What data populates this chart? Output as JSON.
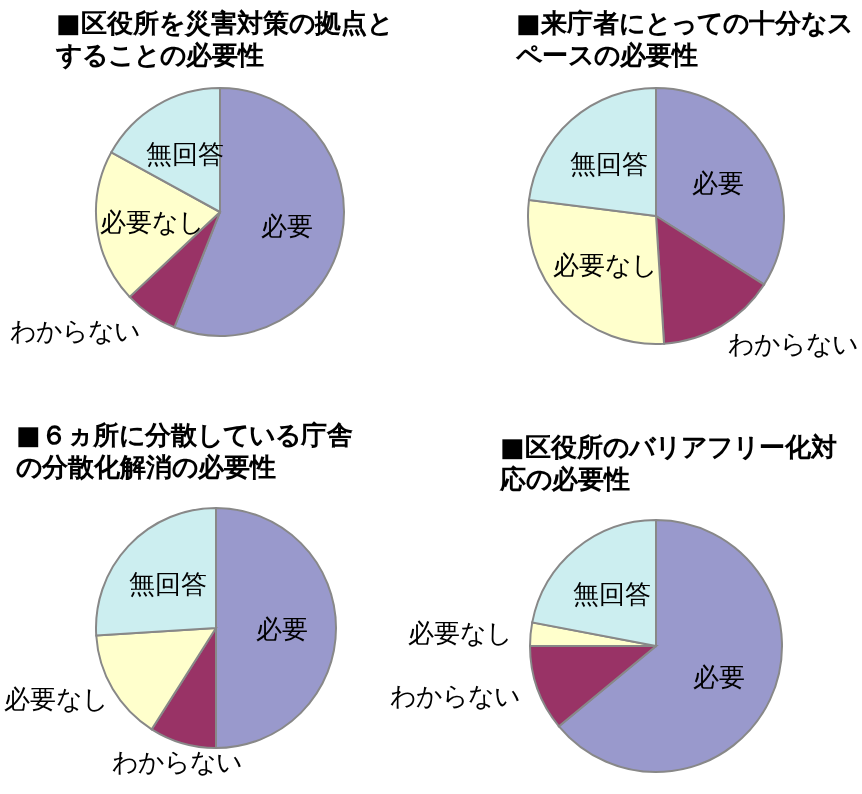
{
  "chart_data": [
    {
      "type": "pie",
      "title": "■区役所を災害対策の拠点とすることの必要性",
      "categories": [
        "必要",
        "わからない",
        "必要なし",
        "無回答"
      ],
      "values": [
        56,
        7,
        20,
        17
      ],
      "colors": [
        "#9999cc",
        "#993366",
        "#ffffcc",
        "#cceef0"
      ]
    },
    {
      "type": "pie",
      "title": "■来庁者にとっての十分なスペースの必要性",
      "categories": [
        "必要",
        "わからない",
        "必要なし",
        "無回答"
      ],
      "values": [
        34,
        15,
        28,
        23
      ],
      "colors": [
        "#9999cc",
        "#993366",
        "#ffffcc",
        "#cceef0"
      ]
    },
    {
      "type": "pie",
      "title": "■６ヵ所に分散している庁舎の分散化解消の必要性",
      "categories": [
        "必要",
        "わからない",
        "必要なし",
        "無回答"
      ],
      "values": [
        50,
        9,
        15,
        26
      ],
      "colors": [
        "#9999cc",
        "#993366",
        "#ffffcc",
        "#cceef0"
      ]
    },
    {
      "type": "pie",
      "title": "■区役所のバリアフリー化対応の必要性",
      "categories": [
        "必要",
        "わからない",
        "必要なし",
        "無回答"
      ],
      "values": [
        64,
        11,
        3,
        22
      ],
      "colors": [
        "#9999cc",
        "#993366",
        "#ffffcc",
        "#cceef0"
      ]
    }
  ]
}
